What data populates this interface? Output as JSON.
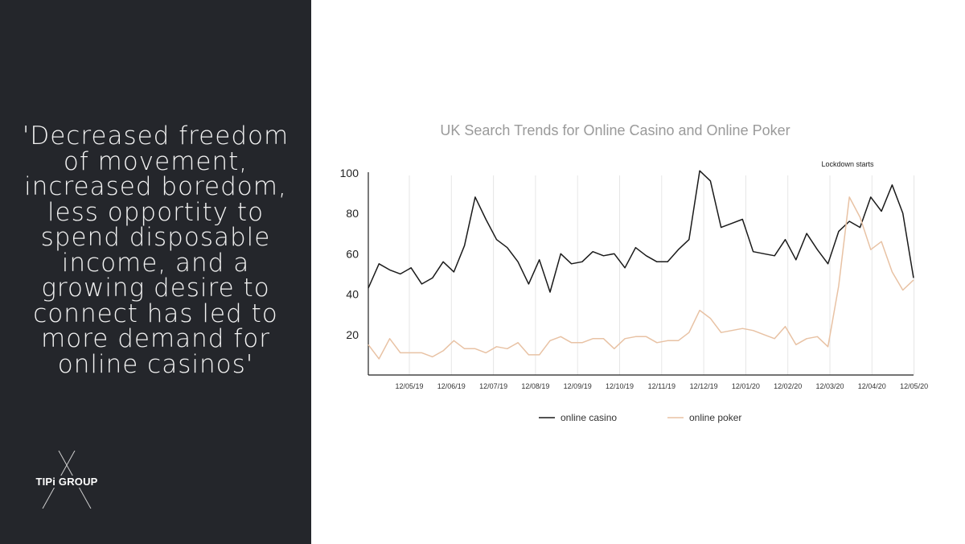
{
  "quote": {
    "text": "'Decreased freedom of movement, increased boredom, less opportity to spend disposable income, and a growing desire to connect has led to more demand for online casinos'"
  },
  "logo": {
    "text": "TIPi GROUP"
  },
  "colors": {
    "panel": "#24262b",
    "online_casino": "#1a1a1a",
    "online_poker": "#e8c2a4",
    "title": "#9a9a9a",
    "grid": "#e6e6e6"
  },
  "chart_data": {
    "type": "line",
    "title": "UK Search Trends for Online Casino and Online Poker",
    "annotation": "Lockdown starts",
    "ylim": [
      0,
      100
    ],
    "yticks": [
      20,
      40,
      60,
      80,
      100
    ],
    "xtick_labels": [
      "12/05/19",
      "12/06/19",
      "12/07/19",
      "12/08/19",
      "12/09/19",
      "12/10/19",
      "12/11/19",
      "12/12/19",
      "12/01/20",
      "12/02/20",
      "12/03/20",
      "12/04/20",
      "12/05/20"
    ],
    "grid": "vertical",
    "legend_position": "bottom",
    "series": [
      {
        "name": "online casino",
        "values": [
          43,
          55,
          52,
          50,
          53,
          45,
          48,
          56,
          51,
          64,
          88,
          77,
          67,
          63,
          56,
          45,
          57,
          41,
          60,
          55,
          56,
          61,
          59,
          60,
          53,
          63,
          59,
          56,
          56,
          62,
          67,
          101,
          96,
          73,
          75,
          77,
          61,
          60,
          59,
          67,
          57,
          70,
          62,
          55,
          71,
          76,
          73,
          88,
          81,
          94,
          80,
          48
        ]
      },
      {
        "name": "online  poker",
        "values": [
          15,
          8,
          18,
          11,
          11,
          11,
          9,
          12,
          17,
          13,
          13,
          11,
          14,
          13,
          16,
          10,
          10,
          17,
          19,
          16,
          16,
          18,
          18,
          13,
          18,
          19,
          19,
          16,
          17,
          17,
          21,
          32,
          28,
          21,
          22,
          23,
          22,
          20,
          18,
          24,
          15,
          18,
          19,
          14,
          44,
          88,
          78,
          62,
          66,
          51,
          42,
          47
        ]
      }
    ]
  }
}
